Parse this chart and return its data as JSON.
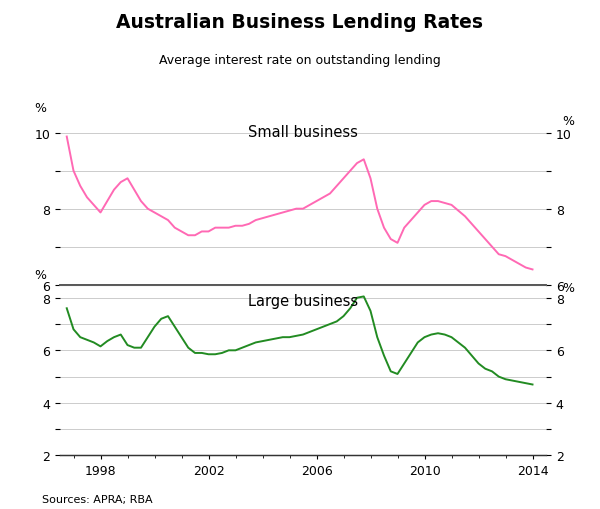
{
  "title": "Australian Business Lending Rates",
  "subtitle": "Average interest rate on outstanding lending",
  "source": "Sources: APRA; RBA",
  "small_label": "Small business",
  "large_label": "Large business",
  "ylabel_left": "%",
  "ylabel_right": "%",
  "small_color": "#FF69B4",
  "large_color": "#228B22",
  "small_ylim": [
    6,
    10.5
  ],
  "large_ylim": [
    2,
    8.5
  ],
  "small_yticks": [
    6,
    8,
    10
  ],
  "large_yticks": [
    2,
    4,
    6,
    8
  ],
  "small_ygrid": [
    6,
    7,
    8,
    9,
    10
  ],
  "large_ygrid": [
    2,
    3,
    4,
    5,
    6,
    7,
    8
  ],
  "xtick_years": [
    1998,
    2002,
    2006,
    2010,
    2014
  ],
  "xmin": 1996.5,
  "xmax": 2014.5,
  "small_x": [
    1996.75,
    1997.0,
    1997.25,
    1997.5,
    1997.75,
    1998.0,
    1998.25,
    1998.5,
    1998.75,
    1999.0,
    1999.25,
    1999.5,
    1999.75,
    2000.0,
    2000.25,
    2000.5,
    2000.75,
    2001.0,
    2001.25,
    2001.5,
    2001.75,
    2002.0,
    2002.25,
    2002.5,
    2002.75,
    2003.0,
    2003.25,
    2003.5,
    2003.75,
    2004.0,
    2004.25,
    2004.5,
    2004.75,
    2005.0,
    2005.25,
    2005.5,
    2005.75,
    2006.0,
    2006.25,
    2006.5,
    2006.75,
    2007.0,
    2007.25,
    2007.5,
    2007.75,
    2008.0,
    2008.25,
    2008.5,
    2008.75,
    2009.0,
    2009.25,
    2009.5,
    2009.75,
    2010.0,
    2010.25,
    2010.5,
    2010.75,
    2011.0,
    2011.25,
    2011.5,
    2011.75,
    2012.0,
    2012.25,
    2012.5,
    2012.75,
    2013.0,
    2013.25,
    2013.5,
    2013.75,
    2014.0
  ],
  "small_y": [
    9.9,
    9.0,
    8.6,
    8.3,
    8.1,
    7.9,
    8.2,
    8.5,
    8.7,
    8.8,
    8.5,
    8.2,
    8.0,
    7.9,
    7.8,
    7.7,
    7.5,
    7.4,
    7.3,
    7.3,
    7.4,
    7.4,
    7.5,
    7.5,
    7.5,
    7.55,
    7.55,
    7.6,
    7.7,
    7.75,
    7.8,
    7.85,
    7.9,
    7.95,
    8.0,
    8.0,
    8.1,
    8.2,
    8.3,
    8.4,
    8.6,
    8.8,
    9.0,
    9.2,
    9.3,
    8.8,
    8.0,
    7.5,
    7.2,
    7.1,
    7.5,
    7.7,
    7.9,
    8.1,
    8.2,
    8.2,
    8.15,
    8.1,
    7.95,
    7.8,
    7.6,
    7.4,
    7.2,
    7.0,
    6.8,
    6.75,
    6.65,
    6.55,
    6.45,
    6.4
  ],
  "large_x": [
    1996.75,
    1997.0,
    1997.25,
    1997.5,
    1997.75,
    1998.0,
    1998.25,
    1998.5,
    1998.75,
    1999.0,
    1999.25,
    1999.5,
    1999.75,
    2000.0,
    2000.25,
    2000.5,
    2000.75,
    2001.0,
    2001.25,
    2001.5,
    2001.75,
    2002.0,
    2002.25,
    2002.5,
    2002.75,
    2003.0,
    2003.25,
    2003.5,
    2003.75,
    2004.0,
    2004.25,
    2004.5,
    2004.75,
    2005.0,
    2005.25,
    2005.5,
    2005.75,
    2006.0,
    2006.25,
    2006.5,
    2006.75,
    2007.0,
    2007.25,
    2007.5,
    2007.75,
    2008.0,
    2008.25,
    2008.5,
    2008.75,
    2009.0,
    2009.25,
    2009.5,
    2009.75,
    2010.0,
    2010.25,
    2010.5,
    2010.75,
    2011.0,
    2011.25,
    2011.5,
    2011.75,
    2012.0,
    2012.25,
    2012.5,
    2012.75,
    2013.0,
    2013.25,
    2013.5,
    2013.75,
    2014.0
  ],
  "large_y": [
    7.6,
    6.8,
    6.5,
    6.4,
    6.3,
    6.15,
    6.35,
    6.5,
    6.6,
    6.2,
    6.1,
    6.1,
    6.5,
    6.9,
    7.2,
    7.3,
    6.9,
    6.5,
    6.1,
    5.9,
    5.9,
    5.85,
    5.85,
    5.9,
    6.0,
    6.0,
    6.1,
    6.2,
    6.3,
    6.35,
    6.4,
    6.45,
    6.5,
    6.5,
    6.55,
    6.6,
    6.7,
    6.8,
    6.9,
    7.0,
    7.1,
    7.3,
    7.6,
    8.0,
    8.05,
    7.5,
    6.5,
    5.8,
    5.2,
    5.1,
    5.5,
    5.9,
    6.3,
    6.5,
    6.6,
    6.65,
    6.6,
    6.5,
    6.3,
    6.1,
    5.8,
    5.5,
    5.3,
    5.2,
    5.0,
    4.9,
    4.85,
    4.8,
    4.75,
    4.7
  ]
}
